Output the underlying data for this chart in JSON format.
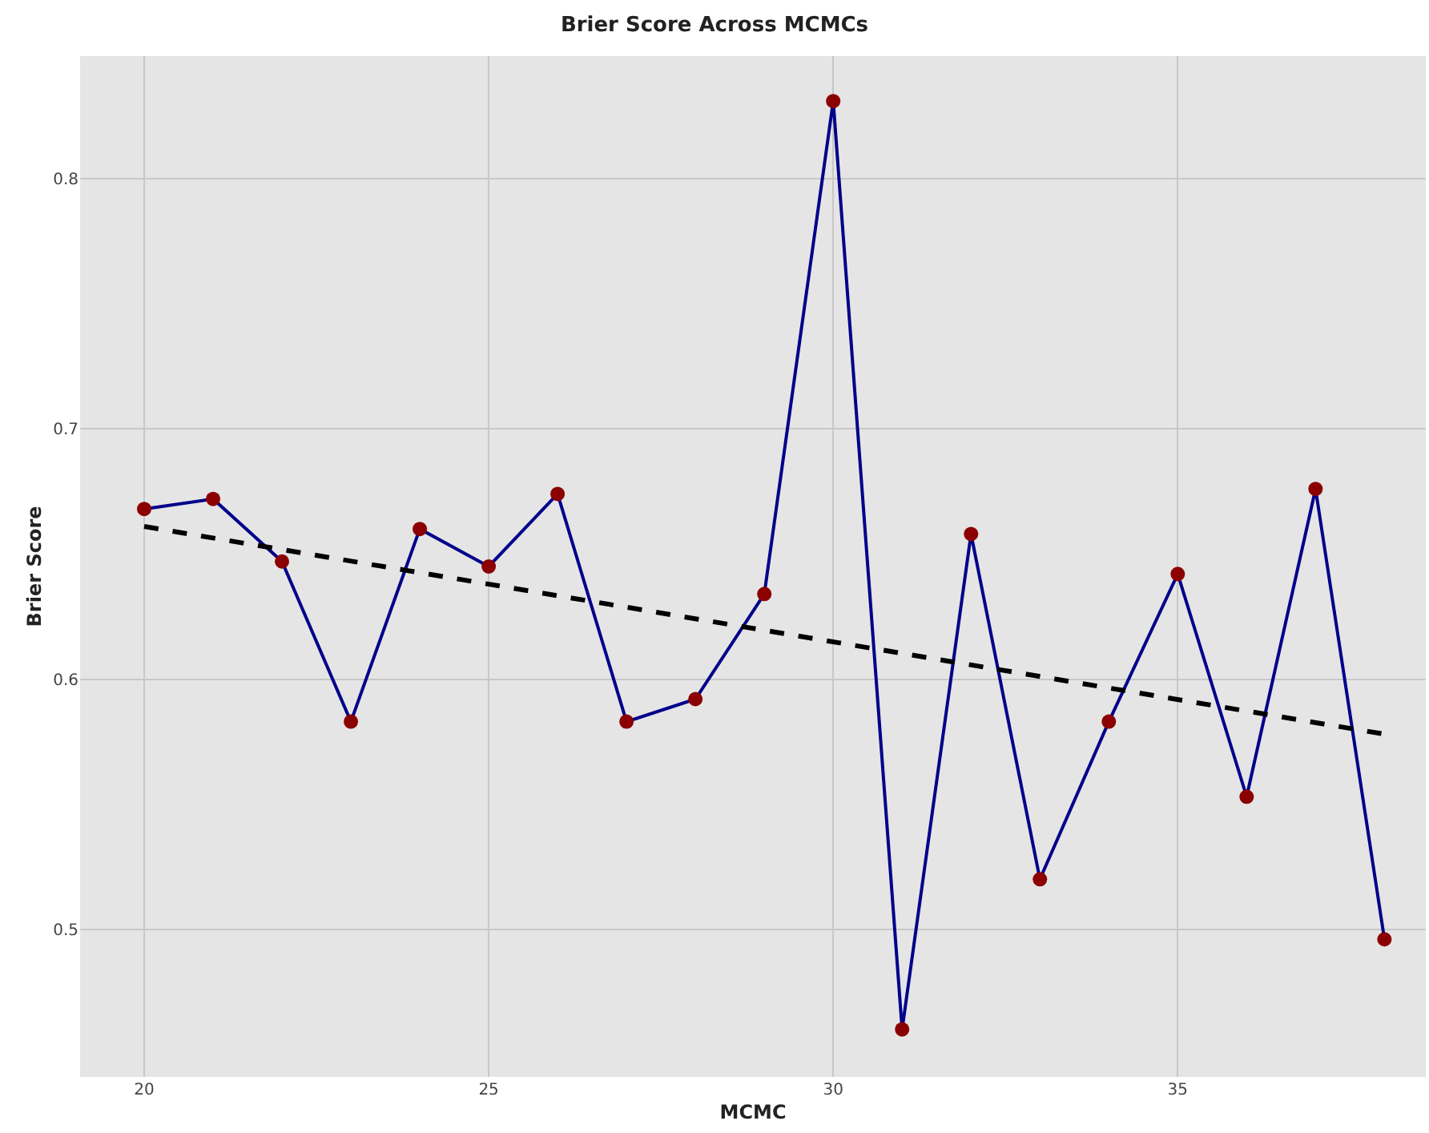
{
  "chart_data": {
    "type": "line",
    "title": "Brier Score Across MCMCs",
    "xlabel": "MCMC",
    "ylabel": "Brier Score",
    "x": [
      20,
      21,
      22,
      23,
      24,
      25,
      26,
      27,
      28,
      29,
      30,
      31,
      32,
      33,
      34,
      35,
      36,
      37,
      38
    ],
    "series": [
      {
        "color": "#00008b",
        "marker": "circle",
        "colors": [
          "#8b0000",
          "#8b0000",
          "#8b0000",
          "#8b0000",
          "#8b0000",
          "#8b0000",
          "#8b0000",
          "#8b0000",
          "#8b0000",
          "#8b0000",
          "#8b0000",
          "#8b0000",
          "#8b0000",
          "#8b0000",
          "#8b0000",
          "#8b0000",
          "#8b0000",
          "#8b0000",
          "#8b0000"
        ],
        "line_style": "solid",
        "values": [
          0.668,
          0.672,
          0.647,
          0.583,
          0.66,
          0.645,
          0.674,
          0.583,
          0.592,
          0.634,
          0.831,
          0.46,
          0.658,
          0.52,
          0.583,
          0.642,
          0.553,
          0.676,
          0.496
        ]
      },
      {
        "type": "line",
        "color": "#000000",
        "marker": "none",
        "line_style": "dashed",
        "x": [
          20,
          38
        ],
        "values": [
          0.661,
          0.578
        ]
      }
    ],
    "xlim": [
      19.07,
      38.6
    ],
    "ylim": [
      0.441,
      0.849
    ],
    "xticks": [
      20,
      25,
      30,
      35
    ],
    "yticks": [
      0.5,
      0.6,
      0.7,
      0.8
    ],
    "grid": true,
    "legend": false
  }
}
